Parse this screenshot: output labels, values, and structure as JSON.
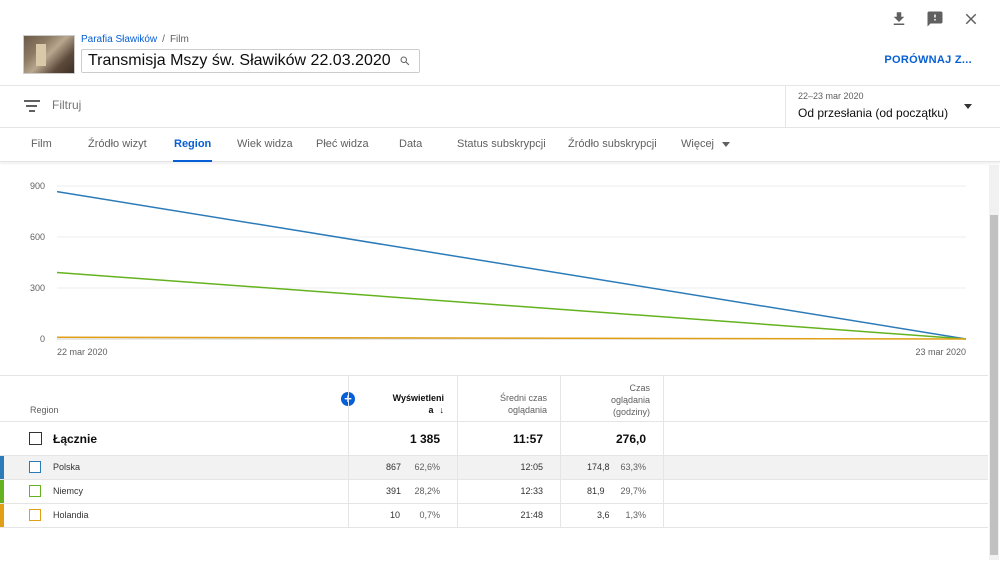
{
  "top_icons": [
    "download-icon",
    "feedback-icon",
    "close-icon"
  ],
  "header": {
    "breadcrumb": {
      "channel": "Parafia Sławików",
      "separator": "/",
      "section": "Film"
    },
    "title": "Transmisja Mszy św. Sławików 22.03.2020",
    "compare_label": "PORÓWNAJ Z..."
  },
  "filter": {
    "placeholder": "Filtruj"
  },
  "date_selector": {
    "range": "22–23 mar 2020",
    "value": "Od przesłania (od początku)"
  },
  "tabs": [
    {
      "label": "Film"
    },
    {
      "label": "Źródło wizyt"
    },
    {
      "label": "Region",
      "active": true
    },
    {
      "label": "Wiek widza"
    },
    {
      "label": "Płeć widza"
    },
    {
      "label": "Data"
    },
    {
      "label": "Status subskrypcji"
    },
    {
      "label": "Źródło subskrypcji"
    },
    {
      "label": "Więcej"
    }
  ],
  "chart_data": {
    "type": "line",
    "x": [
      "22 mar 2020",
      "23 mar 2020"
    ],
    "ylim": [
      0,
      900
    ],
    "yticks": [
      0,
      300,
      600,
      900
    ],
    "grid": true,
    "series": [
      {
        "name": "Polska",
        "color": "#2b7bb9",
        "values": [
          867,
          0
        ]
      },
      {
        "name": "Niemcy",
        "color": "#64b31e",
        "values": [
          391,
          0
        ]
      },
      {
        "name": "Holandia",
        "color": "#e09f16",
        "values": [
          10,
          0
        ]
      }
    ]
  },
  "table": {
    "headers": {
      "region": "Region",
      "views_line1": "Wyświetleni",
      "views_line2": "a",
      "avg_line1": "Średni czas",
      "avg_line2": "oglądania",
      "wt_line1": "Czas",
      "wt_line2": "oglądania",
      "wt_line3": "(godziny)"
    },
    "total": {
      "name": "Łącznie",
      "views": "1 385",
      "avg": "11:57",
      "watch": "276,0"
    },
    "rows": [
      {
        "name": "Polska",
        "color": "#2b7bb9",
        "views": "867",
        "views_pct": "62,6%",
        "avg": "12:05",
        "watch": "174,8",
        "watch_pct": "63,3%"
      },
      {
        "name": "Niemcy",
        "color": "#64b31e",
        "views": "391",
        "views_pct": "28,2%",
        "avg": "12:33",
        "watch": "81,9",
        "watch_pct": "29,7%"
      },
      {
        "name": "Holandia",
        "color": "#e09f16",
        "views": "10",
        "views_pct": "0,7%",
        "avg": "21:48",
        "watch": "3,6",
        "watch_pct": "1,3%"
      }
    ]
  }
}
